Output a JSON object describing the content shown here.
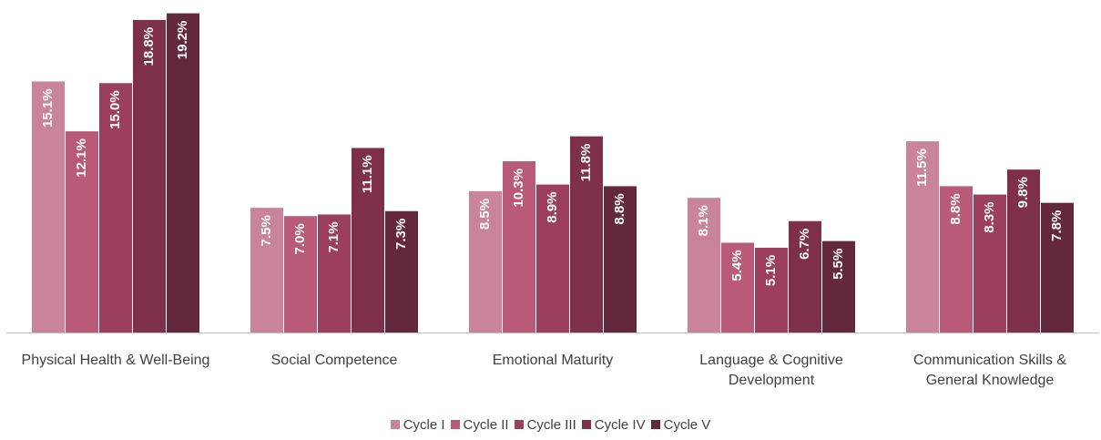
{
  "chart_data": {
    "type": "bar",
    "categories": [
      "Physical Health & Well-Being",
      "Social Competence",
      "Emotional Maturity",
      "Language & Cognitive Development",
      "Communication Skills & General Knowledge"
    ],
    "series": [
      {
        "name": "Cycle I",
        "color": "#c9849a",
        "values": [
          15.1,
          7.5,
          8.5,
          8.1,
          11.5
        ],
        "value_labels": [
          "15.1%",
          "7.5%",
          "8.5%",
          "8.1%",
          "11.5%"
        ]
      },
      {
        "name": "Cycle II",
        "color": "#b85a78",
        "values": [
          12.1,
          7.0,
          10.3,
          5.4,
          8.8
        ],
        "value_labels": [
          "12.1%",
          "7.0%",
          "10.3%",
          "5.4%",
          "8.8%"
        ]
      },
      {
        "name": "Cycle III",
        "color": "#9c3f5e",
        "values": [
          15.0,
          7.1,
          8.9,
          5.1,
          8.3
        ],
        "value_labels": [
          "15.0%",
          "7.1%",
          "8.9%",
          "5.1%",
          "8.3%"
        ]
      },
      {
        "name": "Cycle IV",
        "color": "#7e3049",
        "values": [
          18.8,
          11.1,
          11.8,
          6.7,
          9.8
        ],
        "value_labels": [
          "18.8%",
          "11.1%",
          "11.8%",
          "6.7%",
          "9.8%"
        ]
      },
      {
        "name": "Cycle V",
        "color": "#64283c",
        "values": [
          19.2,
          7.3,
          8.8,
          5.5,
          7.8
        ],
        "value_labels": [
          "19.2%",
          "7.3%",
          "8.8%",
          "5.5%",
          "7.8%"
        ]
      }
    ],
    "ylim": [
      0,
      20
    ]
  }
}
